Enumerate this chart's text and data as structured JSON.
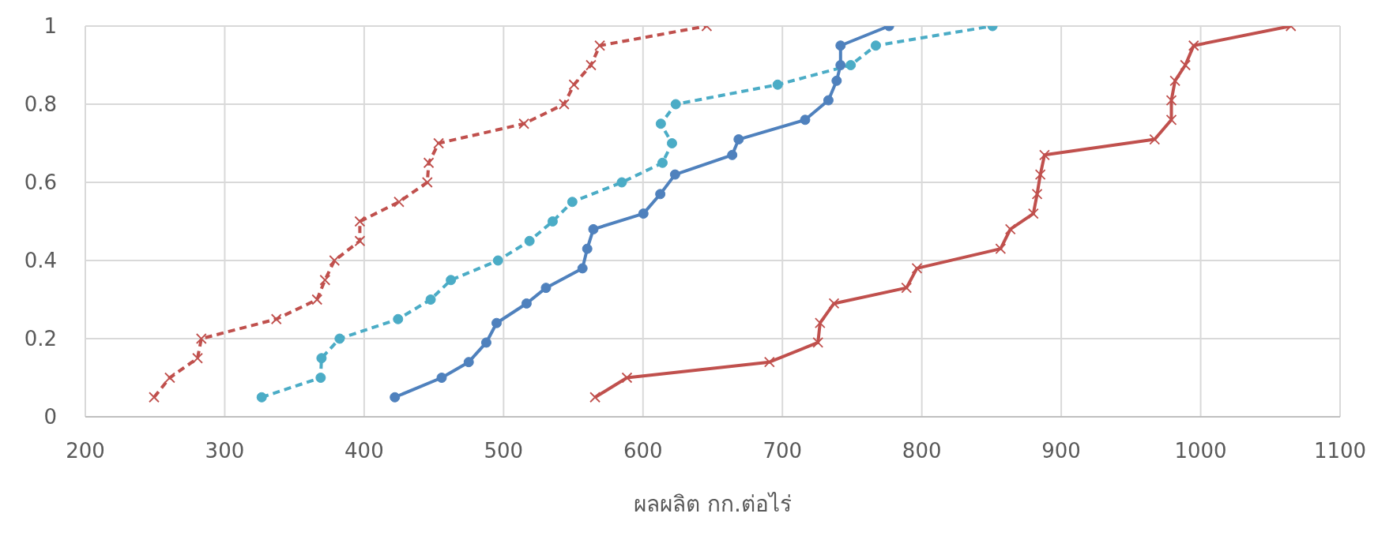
{
  "chart_data": {
    "type": "line",
    "xlabel": "ผลผลิต กก.ต่อไร่",
    "xlim": [
      200,
      1100
    ],
    "xticks": [
      200,
      300,
      400,
      500,
      600,
      700,
      800,
      900,
      1000,
      1100
    ],
    "ylim": [
      0,
      1
    ],
    "yticks": [
      0,
      0.2,
      0.4,
      0.6,
      0.8,
      1
    ],
    "grid": true,
    "legend": false,
    "series": [
      {
        "color": "#4f81bd",
        "marker": "circle",
        "line_style": "solid",
        "x": [
          422,
          455.6,
          475,
          487.6,
          495,
          516.5,
          530.4,
          556.6,
          560,
          564.4,
          600.3,
          612.4,
          623,
          664,
          668.6,
          716.3,
          733,
          738.9,
          741.7,
          741.7,
          776.5
        ],
        "values": [
          0.05,
          0.1,
          0.14,
          0.19,
          0.24,
          0.29,
          0.33,
          0.38,
          0.43,
          0.48,
          0.52,
          0.57,
          0.62,
          0.67,
          0.71,
          0.76,
          0.81,
          0.86,
          0.9,
          0.95,
          1
        ]
      },
      {
        "color": "#c0504d",
        "marker": "cross",
        "line_style": "solid",
        "x": [
          565.6,
          588.5,
          690.7,
          725.5,
          727,
          737,
          789,
          796.5,
          856.5,
          863.5,
          880,
          882.7,
          885,
          888,
          967,
          979,
          979,
          981.6,
          989,
          995,
          1064.7
        ],
        "values": [
          0.05,
          0.1,
          0.14,
          0.19,
          0.24,
          0.29,
          0.33,
          0.38,
          0.43,
          0.48,
          0.52,
          0.57,
          0.62,
          0.67,
          0.71,
          0.76,
          0.81,
          0.86,
          0.9,
          0.95,
          1
        ]
      },
      {
        "color": "#c0504d",
        "marker": "cross",
        "line_style": "dashed",
        "x": [
          249.3,
          260.6,
          280.5,
          283.2,
          337,
          366.2,
          371.9,
          378.7,
          396.9,
          396.9,
          425,
          445.3,
          446.3,
          453.4,
          514.6,
          543.4,
          550.5,
          562.7,
          569,
          645.7
        ],
        "values": [
          0.05,
          0.1,
          0.15,
          0.2,
          0.25,
          0.3,
          0.35,
          0.4,
          0.45,
          0.5,
          0.55,
          0.6,
          0.65,
          0.7,
          0.75,
          0.8,
          0.85,
          0.9,
          0.95,
          1
        ]
      },
      {
        "color": "#4bacc6",
        "marker": "circle",
        "line_style": "dashed",
        "x": [
          326.5,
          368.8,
          369.4,
          382.4,
          424.3,
          447.7,
          462.2,
          496,
          518.6,
          535.2,
          549.3,
          584.8,
          614,
          620.8,
          612.8,
          623.5,
          696.6,
          749,
          767,
          850.7
        ],
        "values": [
          0.05,
          0.1,
          0.15,
          0.2,
          0.25,
          0.3,
          0.35,
          0.4,
          0.45,
          0.5,
          0.55,
          0.6,
          0.65,
          0.7,
          0.75,
          0.8,
          0.85,
          0.9,
          0.95,
          1
        ]
      }
    ]
  }
}
